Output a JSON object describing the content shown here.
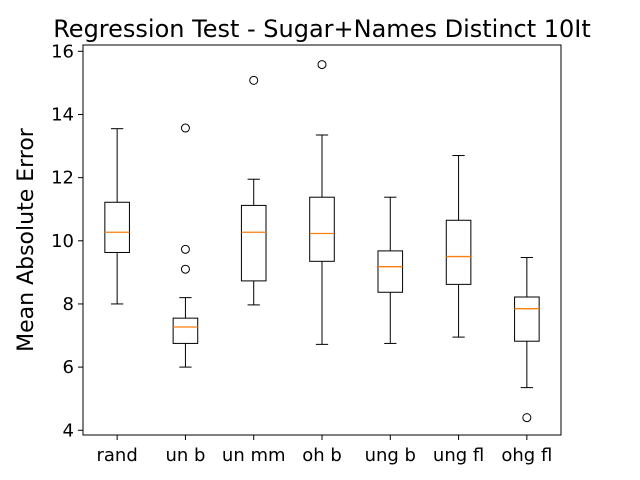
{
  "chart_data": {
    "type": "box",
    "title": "Regression Test - Sugar+Names Distinct 10It",
    "xlabel": "",
    "ylabel": "Mean Absolute Error",
    "ylim": [
      3.85,
      16.2
    ],
    "yticks": [
      4,
      6,
      8,
      10,
      12,
      14,
      16
    ],
    "grid": false,
    "colors": {
      "box": "#000000",
      "median": "#ff7f0e",
      "frame": "#000000"
    },
    "categories": [
      "rand",
      "un b",
      "un mm",
      "oh b",
      "ung b",
      "ung fl",
      "ohg fl"
    ],
    "boxes": [
      {
        "label": "rand",
        "whislo": 8.0,
        "q1": 9.63,
        "med": 10.27,
        "q3": 11.22,
        "whishi": 13.55,
        "fliers": []
      },
      {
        "label": "un b",
        "whislo": 6.0,
        "q1": 6.75,
        "med": 7.27,
        "q3": 7.55,
        "whishi": 8.2,
        "fliers": [
          13.57,
          9.73,
          9.1
        ]
      },
      {
        "label": "un mm",
        "whislo": 7.97,
        "q1": 8.73,
        "med": 10.27,
        "q3": 11.12,
        "whishi": 11.95,
        "fliers": [
          15.08
        ]
      },
      {
        "label": "oh b",
        "whislo": 6.72,
        "q1": 9.35,
        "med": 10.23,
        "q3": 11.38,
        "whishi": 13.35,
        "fliers": [
          15.58
        ]
      },
      {
        "label": "ung b",
        "whislo": 6.75,
        "q1": 8.37,
        "med": 9.18,
        "q3": 9.68,
        "whishi": 11.38,
        "fliers": []
      },
      {
        "label": "ung fl",
        "whislo": 6.95,
        "q1": 8.62,
        "med": 9.5,
        "q3": 10.65,
        "whishi": 12.7,
        "fliers": []
      },
      {
        "label": "ohg fl",
        "whislo": 5.35,
        "q1": 6.82,
        "med": 7.85,
        "q3": 8.22,
        "whishi": 9.47,
        "fliers": [
          4.4
        ]
      }
    ]
  }
}
